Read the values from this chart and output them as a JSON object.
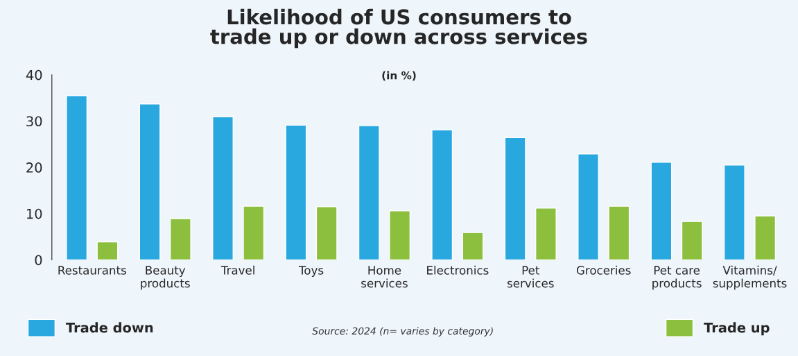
{
  "chart_data": {
    "type": "bar",
    "title": "Likelihood of US consumers to\ntrade up or down across services",
    "subtitle": "(in %)",
    "categories": [
      "Restaurants",
      "Beauty\nproducts",
      "Travel",
      "Toys",
      "Home\nservices",
      "Electronics",
      "Pet\nservices",
      "Groceries",
      "Pet care\nproducts",
      "Vitamins/\nsupplements"
    ],
    "series": [
      {
        "name": "Trade down",
        "color": "#29a8e0",
        "values": [
          35.5,
          33.7,
          30.9,
          29.1,
          29.0,
          28.1,
          26.4,
          22.9,
          21.1,
          20.5
        ]
      },
      {
        "name": "Trade up",
        "color": "#8dbf3f",
        "values": [
          3.9,
          8.9,
          11.6,
          11.5,
          10.6,
          5.9,
          11.2,
          11.6,
          8.3,
          9.5
        ]
      }
    ],
    "ylim": [
      0,
      40
    ],
    "yticks": [
      0,
      10,
      20,
      30,
      40
    ],
    "grid": false,
    "legend": "bottom",
    "annotations": [
      "Source: 2024 (n= varies by category)"
    ]
  }
}
